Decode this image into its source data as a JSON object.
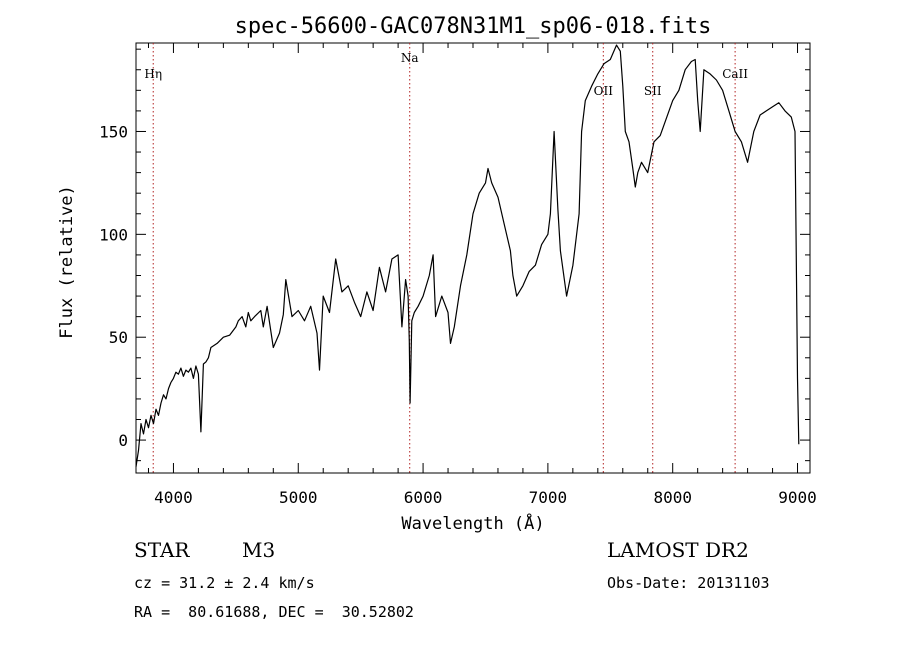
{
  "chart_data": {
    "type": "line",
    "title": "spec-56600-GAC078N31M1_sp06-018.fits",
    "xlabel": "Wavelength (Å)",
    "ylabel": "Flux (relative)",
    "xlim": [
      3700,
      9100
    ],
    "ylim": [
      -16,
      193
    ],
    "xticks": [
      4000,
      5000,
      6000,
      7000,
      8000,
      9000
    ],
    "yticks": [
      0,
      50,
      100,
      150
    ],
    "grid": false,
    "series": [
      {
        "name": "",
        "x": [
          3700,
          3720,
          3740,
          3760,
          3780,
          3800,
          3820,
          3840,
          3860,
          3880,
          3900,
          3920,
          3940,
          3960,
          3980,
          4000,
          4020,
          4040,
          4060,
          4080,
          4100,
          4120,
          4140,
          4160,
          4180,
          4200,
          4220,
          4240,
          4260,
          4280,
          4300,
          4350,
          4400,
          4450,
          4500,
          4520,
          4550,
          4580,
          4600,
          4620,
          4650,
          4700,
          4720,
          4750,
          4800,
          4850,
          4880,
          4900,
          4950,
          5000,
          5050,
          5100,
          5150,
          5170,
          5200,
          5250,
          5300,
          5350,
          5400,
          5450,
          5500,
          5550,
          5600,
          5650,
          5700,
          5750,
          5800,
          5830,
          5860,
          5880,
          5890,
          5896,
          5910,
          5930,
          5960,
          6000,
          6050,
          6080,
          6100,
          6150,
          6200,
          6220,
          6250,
          6300,
          6350,
          6400,
          6450,
          6500,
          6520,
          6550,
          6600,
          6650,
          6700,
          6720,
          6750,
          6800,
          6850,
          6900,
          6950,
          7000,
          7020,
          7050,
          7080,
          7100,
          7150,
          7200,
          7250,
          7270,
          7300,
          7350,
          7400,
          7450,
          7500,
          7550,
          7580,
          7600,
          7620,
          7650,
          7680,
          7700,
          7720,
          7750,
          7800,
          7850,
          7900,
          8000,
          8050,
          8100,
          8150,
          8180,
          8200,
          8220,
          8250,
          8300,
          8350,
          8400,
          8450,
          8500,
          8550,
          8600,
          8650,
          8700,
          8750,
          8800,
          8850,
          8900,
          8950,
          8980,
          9000,
          9010
        ],
        "y": [
          -13,
          -5,
          8,
          3,
          10,
          6,
          12,
          8,
          15,
          12,
          18,
          22,
          20,
          25,
          28,
          30,
          33,
          32,
          35,
          31,
          34,
          33,
          35,
          30,
          36,
          32,
          4,
          37,
          38,
          40,
          45,
          47,
          50,
          51,
          55,
          58,
          60,
          55,
          62,
          58,
          60,
          63,
          55,
          65,
          45,
          52,
          61,
          78,
          60,
          63,
          58,
          65,
          52,
          34,
          70,
          62,
          88,
          72,
          75,
          67,
          60,
          72,
          63,
          84,
          72,
          88,
          90,
          55,
          78,
          70,
          48,
          18,
          58,
          62,
          65,
          70,
          80,
          90,
          60,
          70,
          62,
          47,
          55,
          75,
          90,
          110,
          120,
          125,
          132,
          125,
          118,
          105,
          92,
          80,
          70,
          75,
          82,
          85,
          95,
          100,
          110,
          150,
          112,
          92,
          70,
          85,
          110,
          150,
          165,
          172,
          178,
          183,
          185,
          192,
          189,
          172,
          150,
          145,
          132,
          123,
          130,
          135,
          130,
          145,
          148,
          165,
          170,
          180,
          184,
          185,
          165,
          150,
          180,
          178,
          175,
          170,
          160,
          150,
          145,
          135,
          150,
          158,
          160,
          162,
          164,
          160,
          157,
          150,
          30,
          -2
        ]
      }
    ],
    "annotations": [
      {
        "label": "Hη",
        "x": 3838
      },
      {
        "label": "Na",
        "x": 5893
      },
      {
        "label": "OII",
        "x": 7444
      },
      {
        "label": "SII",
        "x": 7840
      },
      {
        "label": "CaII",
        "x": 8500
      }
    ]
  },
  "info": {
    "class": "STAR",
    "subclass": "M3",
    "cz": "cz = 31.2 ± 2.4 km/s",
    "coords": "RA =  80.61688, DEC =  30.52802",
    "survey": "LAMOST DR2",
    "obsdate": "Obs-Date: 20131103"
  },
  "colors": {
    "spectrum": "#000000",
    "marker": "#b22222",
    "background": "#ffffff"
  }
}
